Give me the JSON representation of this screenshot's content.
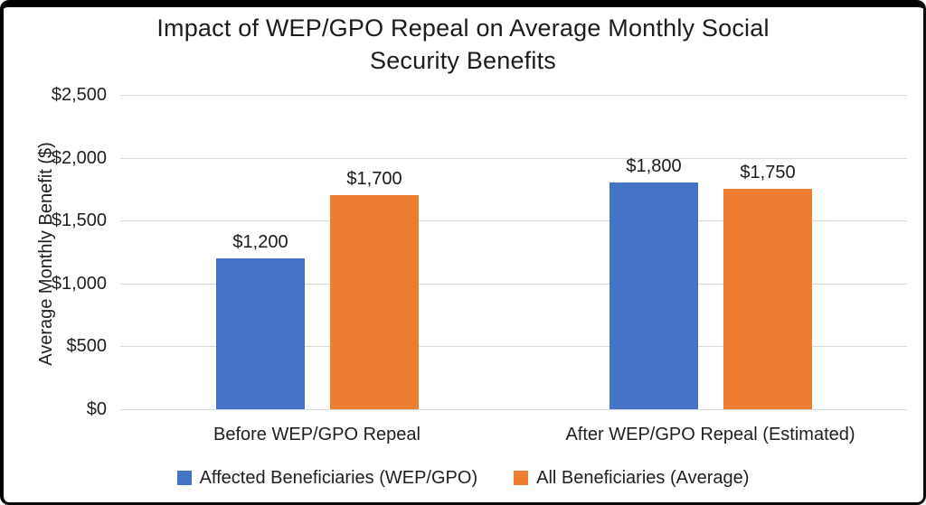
{
  "chart_data": {
    "type": "bar",
    "title": "Impact of WEP/GPO Repeal on Average Monthly Social Security Benefits",
    "title_lines": [
      "Impact of WEP/GPO Repeal on Average Monthly Social",
      "Security Benefits"
    ],
    "ylabel": "Average Monthly Benefit ($)",
    "categories": [
      "Before WEP/GPO Repeal",
      "After WEP/GPO Repeal (Estimated)"
    ],
    "series": [
      {
        "name": "Affected Beneficiaries (WEP/GPO)",
        "color": "#4472C4",
        "values": [
          1200,
          1800
        ],
        "labels": [
          "$1,200",
          "$1,800"
        ]
      },
      {
        "name": "All Beneficiaries (Average)",
        "color": "#ED7D31",
        "values": [
          1700,
          1750
        ],
        "labels": [
          "$1,700",
          "$1,750"
        ]
      }
    ],
    "ylim": [
      0,
      2500
    ],
    "ytick_step": 500,
    "yticks": [
      "$0",
      "$500",
      "$1,000",
      "$1,500",
      "$2,000",
      "$2,500"
    ],
    "grid": true,
    "gridline_color": "#d9d9d9",
    "legend_position": "bottom",
    "background_color": "#ffffff",
    "frame_color": "#000000"
  }
}
